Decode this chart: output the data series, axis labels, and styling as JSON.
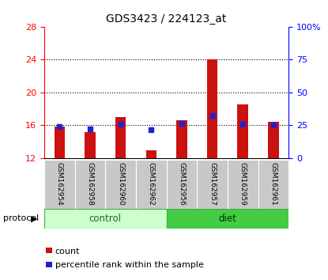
{
  "title": "GDS3423 / 224123_at",
  "samples": [
    "GSM162954",
    "GSM162958",
    "GSM162960",
    "GSM162962",
    "GSM162956",
    "GSM162957",
    "GSM162959",
    "GSM162961"
  ],
  "count_values": [
    15.8,
    15.2,
    17.0,
    13.0,
    16.6,
    24.0,
    18.5,
    16.4
  ],
  "percentile_values": [
    15.85,
    15.55,
    16.15,
    15.45,
    16.25,
    17.2,
    16.15,
    16.0
  ],
  "y_min": 12,
  "y_max": 28,
  "y_ticks": [
    12,
    16,
    20,
    24,
    28
  ],
  "y2_ticks": [
    0,
    25,
    50,
    75,
    100
  ],
  "y2_labels": [
    "0",
    "25",
    "50",
    "75",
    "100%"
  ],
  "bar_color": "#cc1111",
  "dot_color": "#2222cc",
  "control_color": "#ccffcc",
  "diet_color": "#44cc44",
  "label_bg_color": "#c8c8c8",
  "control_label": "control",
  "diet_label": "diet",
  "protocol_label": "protocol",
  "legend_count": "count",
  "legend_pct": "percentile rank within the sample",
  "n_control": 4,
  "n_diet": 4,
  "grid_lines": [
    16,
    20,
    24
  ]
}
